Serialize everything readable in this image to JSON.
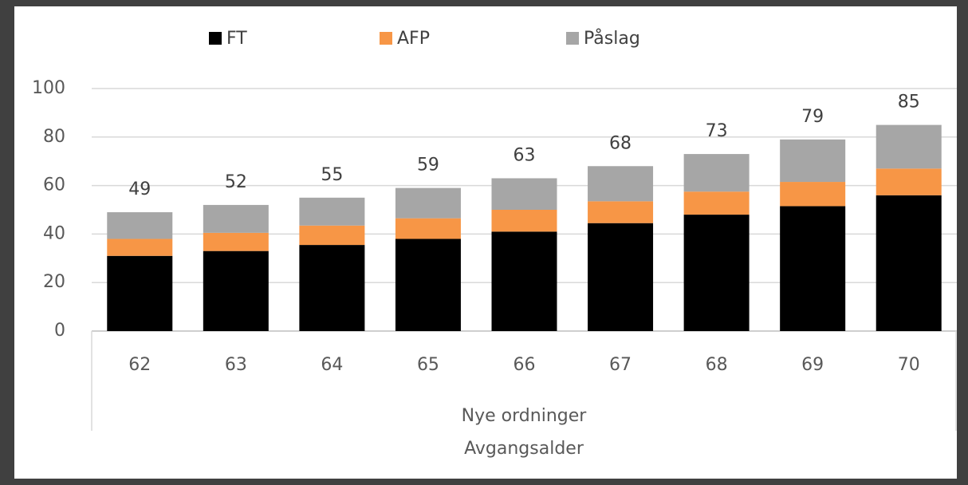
{
  "chart_data": {
    "type": "stacked_bar",
    "categories": [
      "62",
      "63",
      "64",
      "65",
      "66",
      "67",
      "68",
      "69",
      "70"
    ],
    "group_label": "Nye ordninger",
    "x_label": "Avgangsalder",
    "series": [
      {
        "name": "FT",
        "color": "#000000",
        "values": [
          31,
          33,
          35.5,
          38,
          41,
          44.5,
          48,
          51.5,
          56
        ]
      },
      {
        "name": "AFP",
        "color": "#f79646",
        "values": [
          7,
          7.5,
          8,
          8.5,
          9,
          9,
          9.5,
          10,
          11
        ]
      },
      {
        "name": "Påslag",
        "color": "#a6a6a6",
        "values": [
          11,
          11.5,
          11.5,
          12.5,
          13,
          14.5,
          15.5,
          17.5,
          18
        ]
      }
    ],
    "totals": [
      49,
      52,
      55,
      59,
      63,
      68,
      73,
      79,
      85
    ],
    "ylim": [
      0,
      100
    ],
    "yticks": [
      0,
      20,
      40,
      60,
      80,
      100
    ],
    "grid": true,
    "legend": "top"
  }
}
